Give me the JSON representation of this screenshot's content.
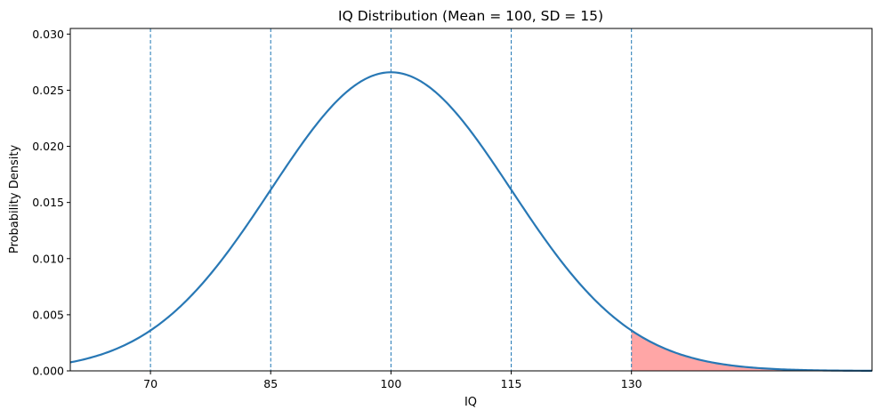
{
  "chart_data": {
    "type": "line",
    "title": "IQ Distribution (Mean = 100, SD = 15)",
    "xlabel": "IQ",
    "ylabel": "Probability Density",
    "xlim": [
      60,
      160
    ],
    "ylim": [
      0,
      0.0305
    ],
    "mean": 100,
    "sd": 15,
    "x_ticks": [
      70,
      85,
      100,
      115,
      130
    ],
    "x_tick_labels": [
      "70",
      "85",
      "100",
      "115",
      "130"
    ],
    "y_ticks": [
      0,
      0.005,
      0.01,
      0.015,
      0.02,
      0.025,
      0.03
    ],
    "y_tick_labels": [
      "0.000",
      "0.005",
      "0.010",
      "0.015",
      "0.020",
      "0.025",
      "0.030"
    ],
    "reference_lines": [
      70,
      85,
      100,
      115,
      130
    ],
    "shaded_region": {
      "from": 130,
      "to": 160,
      "color": "#ffa6a6"
    },
    "series": [
      {
        "color": "#2878b5",
        "x": [
          60,
          65,
          70,
          75,
          80,
          85,
          90,
          95,
          100,
          105,
          110,
          115,
          120,
          125,
          130,
          135,
          140,
          145,
          150,
          155,
          160
        ],
        "values": [
          0.00073,
          0.00181,
          0.0036,
          0.00663,
          0.01093,
          0.01613,
          0.0213,
          0.02516,
          0.0266,
          0.02516,
          0.0213,
          0.01613,
          0.01093,
          0.00663,
          0.0036,
          0.00181,
          0.00073,
          0.00027,
          9e-05,
          3e-05,
          1e-05
        ]
      }
    ],
    "grid": false
  }
}
